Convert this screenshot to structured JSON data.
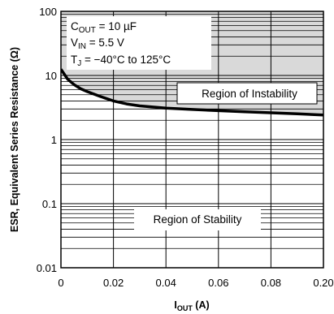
{
  "chart_data": {
    "type": "line",
    "xlabel": "I",
    "xlabel_sub": "OUT",
    "xlabel_unit": " (A)",
    "ylabel": "ESR, Equivalent Series Resistance (Ω)",
    "xlim": [
      0,
      0.2
    ],
    "ylim": [
      0.01,
      100
    ],
    "yscale": "log",
    "grid": true,
    "x_ticks": [
      "0",
      "0.02",
      "0.04",
      "0.06",
      "0.08",
      "0.20"
    ],
    "y_ticks": [
      "100",
      "10",
      "1",
      "0.1",
      "0.01"
    ],
    "conditions": [
      {
        "main": "C",
        "sub": "OUT",
        "rest": " = 10 µF"
      },
      {
        "main": "V",
        "sub": "IN",
        "rest": " = 5.5 V"
      },
      {
        "main": "T",
        "sub": "J",
        "rest": " = −40°C to 125°C"
      }
    ],
    "regions": {
      "instability": "Region of Instability",
      "stability": "Region of Stability"
    },
    "series": [
      {
        "x": [
          0,
          0.005,
          0.01,
          0.015,
          0.02,
          0.03,
          0.04,
          0.05,
          0.06,
          0.08,
          0.1,
          0.12,
          0.14,
          0.16,
          0.18,
          0.2
        ],
        "y": [
          12.5,
          8.8,
          7.2,
          6.2,
          5.6,
          4.7,
          4.0,
          3.6,
          3.35,
          3.1,
          2.95,
          2.82,
          2.72,
          2.62,
          2.52,
          2.42
        ]
      }
    ],
    "colors": {
      "shade": "#d9d9d9",
      "line": "#000000",
      "grid": "#000000"
    }
  }
}
